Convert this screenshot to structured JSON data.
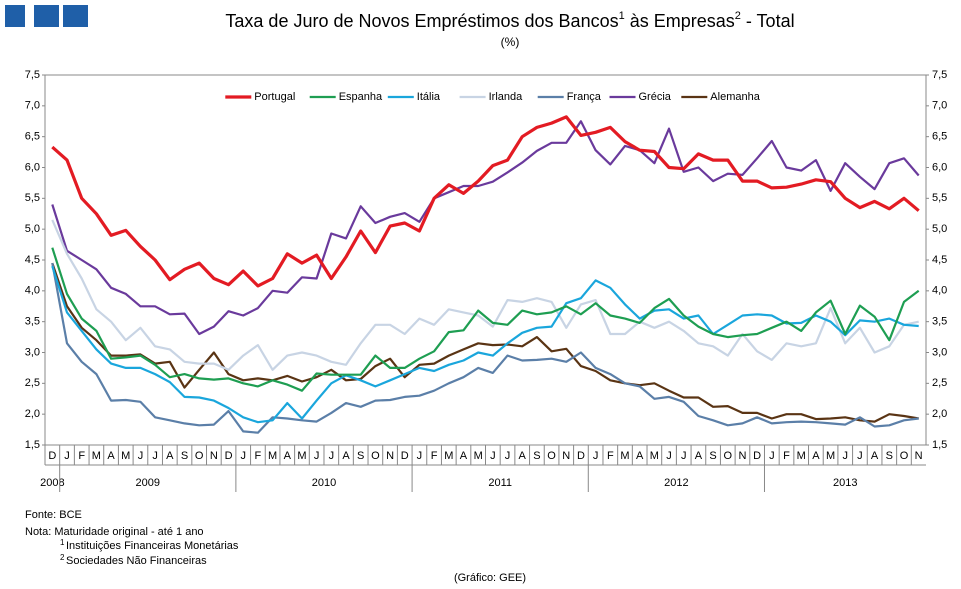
{
  "chart_data": {
    "type": "line",
    "title": [
      "Taxa de Juro de Novos Empréstimos dos Bancos",
      " às Empresas",
      " - Total"
    ],
    "title_sups": [
      "1",
      "2"
    ],
    "subtitle": "(%)",
    "categories": [
      "D",
      "J",
      "F",
      "M",
      "A",
      "M",
      "J",
      "J",
      "A",
      "S",
      "O",
      "N",
      "D",
      "J",
      "F",
      "M",
      "A",
      "M",
      "J",
      "J",
      "A",
      "S",
      "O",
      "N",
      "D",
      "J",
      "F",
      "M",
      "A",
      "M",
      "J",
      "J",
      "A",
      "S",
      "O",
      "N",
      "D",
      "J",
      "F",
      "M",
      "A",
      "M",
      "J",
      "J",
      "A",
      "S",
      "O",
      "N",
      "D",
      "J",
      "F",
      "M",
      "A",
      "M",
      "J",
      "J",
      "A",
      "S",
      "O",
      "N"
    ],
    "years": [
      "2008",
      "2009",
      "2010",
      "2011",
      "2012",
      "2013"
    ],
    "ylim": [
      1.5,
      7.5
    ],
    "yticks": [
      {
        "value": 1.5,
        "label": "1,5"
      },
      {
        "value": 2.0,
        "label": "2,0"
      },
      {
        "value": 2.5,
        "label": "2,5"
      },
      {
        "value": 3.0,
        "label": "3,0"
      },
      {
        "value": 3.5,
        "label": "3,5"
      },
      {
        "value": 4.0,
        "label": "4,0"
      },
      {
        "value": 4.5,
        "label": "4,5"
      },
      {
        "value": 5.0,
        "label": "5,0"
      },
      {
        "value": 5.5,
        "label": "5,5"
      },
      {
        "value": 6.0,
        "label": "6,0"
      },
      {
        "value": 6.5,
        "label": "6,5"
      },
      {
        "value": 7.0,
        "label": "7,0"
      },
      {
        "value": 7.5,
        "label": "7,5"
      }
    ],
    "y2lim": [
      1.5,
      7.5
    ],
    "y2ticks": [
      {
        "value": 1.5,
        "label": "1,5"
      },
      {
        "value": 2.0,
        "label": "2,0"
      },
      {
        "value": 2.5,
        "label": "2,5"
      },
      {
        "value": 3.0,
        "label": "3,0"
      },
      {
        "value": 3.5,
        "label": "3,5"
      },
      {
        "value": 4.0,
        "label": "4,0"
      },
      {
        "value": 4.5,
        "label": "4,5"
      },
      {
        "value": 5.0,
        "label": "5,0"
      },
      {
        "value": 5.5,
        "label": "5,5"
      },
      {
        "value": 6.0,
        "label": "6,0"
      },
      {
        "value": 6.5,
        "label": "6,5"
      },
      {
        "value": 7.0,
        "label": "7,0"
      },
      {
        "value": 7.5,
        "label": "7,5"
      }
    ],
    "grid": false,
    "legend": "top",
    "series": [
      {
        "name": "Portugal",
        "color": "#e31b23",
        "values": [
          6.33,
          6.12,
          5.5,
          5.25,
          4.9,
          4.98,
          4.72,
          4.5,
          4.18,
          4.35,
          4.45,
          4.2,
          4.1,
          4.32,
          4.08,
          4.2,
          4.6,
          4.45,
          4.58,
          4.2,
          4.55,
          4.97,
          4.62,
          5.05,
          5.1,
          4.97,
          5.5,
          5.72,
          5.58,
          5.78,
          6.03,
          6.12,
          6.5,
          6.65,
          6.72,
          6.82,
          6.52,
          6.57,
          6.65,
          6.42,
          6.28,
          6.26,
          6.0,
          5.98,
          6.22,
          6.12,
          6.12,
          5.78,
          5.78,
          5.67,
          5.68,
          5.73,
          5.8,
          5.77,
          5.5,
          5.35,
          5.45,
          5.33,
          5.5,
          5.3
        ]
      },
      {
        "name": "Espanha",
        "color": "#1e9e52",
        "values": [
          4.7,
          3.95,
          3.55,
          3.35,
          2.9,
          2.92,
          2.95,
          2.8,
          2.6,
          2.65,
          2.58,
          2.56,
          2.58,
          2.5,
          2.45,
          2.55,
          2.48,
          2.38,
          2.66,
          2.64,
          2.64,
          2.64,
          2.95,
          2.75,
          2.75,
          2.9,
          3.02,
          3.33,
          3.36,
          3.68,
          3.48,
          3.45,
          3.68,
          3.62,
          3.65,
          3.75,
          3.62,
          3.8,
          3.6,
          3.55,
          3.48,
          3.72,
          3.87,
          3.6,
          3.42,
          3.3,
          3.25,
          3.28,
          3.3,
          3.4,
          3.5,
          3.35,
          3.65,
          3.84,
          3.3,
          3.76,
          3.58,
          3.2,
          3.82,
          4.0
        ]
      },
      {
        "name": "Itália",
        "color": "#1aa6dc",
        "values": [
          4.4,
          3.65,
          3.35,
          3.05,
          2.82,
          2.75,
          2.75,
          2.65,
          2.52,
          2.28,
          2.27,
          2.22,
          2.1,
          1.95,
          1.87,
          1.9,
          2.18,
          1.93,
          2.22,
          2.5,
          2.63,
          2.55,
          2.45,
          2.55,
          2.65,
          2.75,
          2.7,
          2.8,
          2.87,
          3.0,
          2.95,
          3.15,
          3.32,
          3.4,
          3.42,
          3.8,
          3.88,
          4.17,
          4.05,
          3.78,
          3.55,
          3.68,
          3.7,
          3.55,
          3.6,
          3.3,
          3.45,
          3.6,
          3.62,
          3.6,
          3.47,
          3.48,
          3.6,
          3.5,
          3.28,
          3.52,
          3.5,
          3.55,
          3.45,
          3.43
        ]
      },
      {
        "name": "Irlanda",
        "color": "#c8d4e4",
        "values": [
          5.15,
          4.6,
          4.2,
          3.7,
          3.5,
          3.2,
          3.4,
          3.1,
          3.05,
          2.85,
          2.82,
          2.82,
          2.72,
          2.95,
          3.12,
          2.72,
          2.95,
          3.0,
          2.95,
          2.85,
          2.8,
          3.15,
          3.45,
          3.45,
          3.3,
          3.55,
          3.45,
          3.7,
          3.65,
          3.6,
          3.42,
          3.85,
          3.82,
          3.88,
          3.82,
          3.4,
          3.78,
          3.85,
          3.3,
          3.3,
          3.5,
          3.4,
          3.5,
          3.35,
          3.15,
          3.1,
          2.95,
          3.3,
          3.02,
          2.88,
          3.15,
          3.1,
          3.15,
          3.72,
          3.15,
          3.4,
          3.0,
          3.1,
          3.45,
          3.5
        ]
      },
      {
        "name": "França",
        "color": "#5b7fa8",
        "values": [
          4.45,
          3.15,
          2.85,
          2.65,
          2.22,
          2.23,
          2.2,
          1.95,
          1.9,
          1.85,
          1.82,
          1.83,
          2.05,
          1.72,
          1.7,
          1.95,
          1.93,
          1.9,
          1.88,
          2.02,
          2.18,
          2.12,
          2.22,
          2.23,
          2.28,
          2.3,
          2.38,
          2.5,
          2.6,
          2.75,
          2.67,
          2.95,
          2.87,
          2.88,
          2.9,
          2.85,
          3.0,
          2.75,
          2.65,
          2.5,
          2.45,
          2.25,
          2.28,
          2.2,
          1.97,
          1.9,
          1.82,
          1.85,
          1.95,
          1.85,
          1.87,
          1.88,
          1.87,
          1.85,
          1.83,
          1.95,
          1.8,
          1.82,
          1.9,
          1.93
        ]
      },
      {
        "name": "Grécia",
        "color": "#6a3a9c",
        "values": [
          5.4,
          4.65,
          4.5,
          4.35,
          4.05,
          3.95,
          3.75,
          3.75,
          3.62,
          3.63,
          3.3,
          3.42,
          3.67,
          3.6,
          3.72,
          4.0,
          3.97,
          4.22,
          4.2,
          4.93,
          4.85,
          5.37,
          5.1,
          5.2,
          5.26,
          5.12,
          5.5,
          5.6,
          5.7,
          5.7,
          5.77,
          5.92,
          6.08,
          6.27,
          6.4,
          6.4,
          6.75,
          6.28,
          6.05,
          6.35,
          6.28,
          6.07,
          6.63,
          5.93,
          6.0,
          5.78,
          5.9,
          5.88,
          6.15,
          6.43,
          6.0,
          5.95,
          6.12,
          5.62,
          6.07,
          5.85,
          5.65,
          6.07,
          6.15,
          5.87
        ]
      },
      {
        "name": "Alemanha",
        "color": "#5a3414",
        "values": [
          4.45,
          3.75,
          3.4,
          3.2,
          2.95,
          2.95,
          2.97,
          2.82,
          2.85,
          2.43,
          2.72,
          3.0,
          2.65,
          2.55,
          2.58,
          2.55,
          2.62,
          2.53,
          2.6,
          2.72,
          2.55,
          2.57,
          2.78,
          2.9,
          2.6,
          2.8,
          2.82,
          2.95,
          3.05,
          3.15,
          3.12,
          3.13,
          3.1,
          3.25,
          3.02,
          3.06,
          2.78,
          2.7,
          2.55,
          2.5,
          2.47,
          2.5,
          2.38,
          2.27,
          2.27,
          2.12,
          2.13,
          2.02,
          2.02,
          1.93,
          2.0,
          2.0,
          1.92,
          1.93,
          1.95,
          1.9,
          1.88,
          2.0,
          1.97,
          1.93
        ]
      }
    ],
    "source": "Fonte: BCE",
    "note": "Nota: Maturidade original - até 1 ano",
    "notes": [
      {
        "sup": "1",
        "text": "Instituições Financeiras Monetárias"
      },
      {
        "sup": "2",
        "text": "Sociedades Não Financeiras"
      }
    ],
    "credit": "(Gráfico: GEE)"
  }
}
